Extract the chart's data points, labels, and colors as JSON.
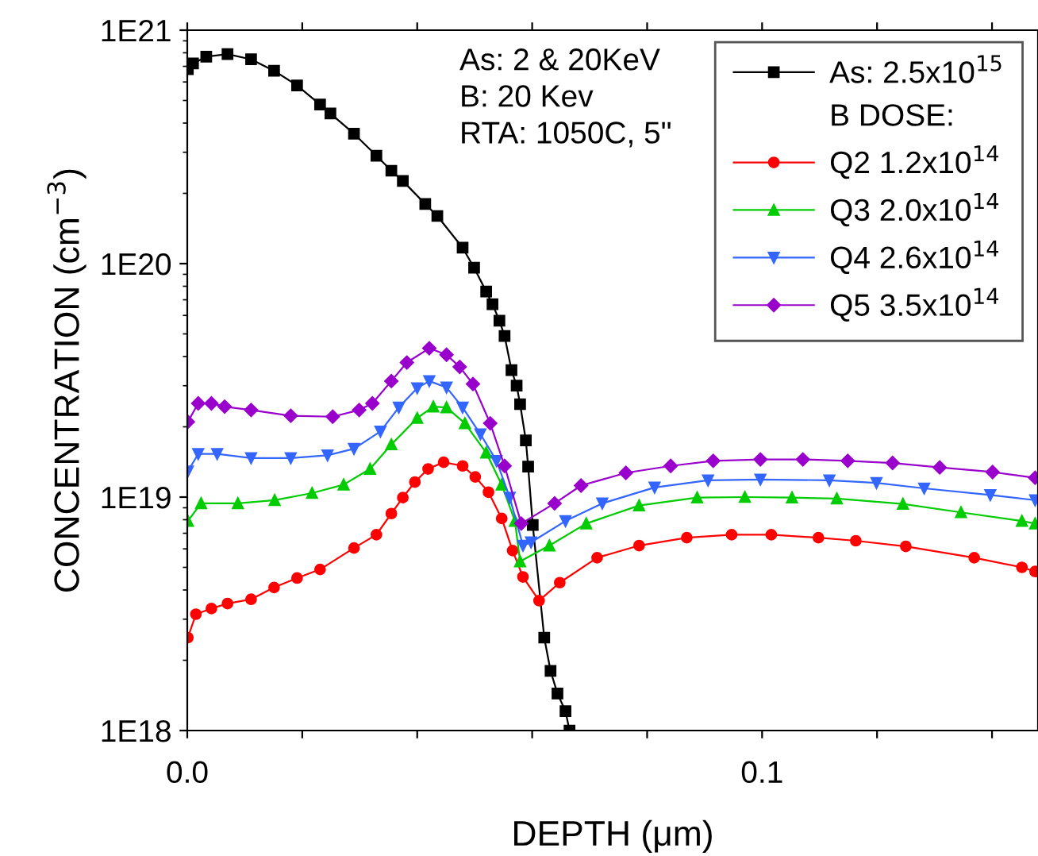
{
  "chart_data": {
    "type": "line",
    "xlabel": "DEPTH (μm)",
    "ylabel": "CONCENTRATION (cm$^{−3}$)",
    "log": "y",
    "xlim": [
      0,
      0.148
    ],
    "ylim": [
      1e+18,
      1e+21
    ],
    "xticks": [
      {
        "value": 0,
        "label": "0.0"
      },
      {
        "value": 0.02,
        "label": null
      },
      {
        "value": 0.04,
        "label": null
      },
      {
        "value": 0.06,
        "label": null
      },
      {
        "value": 0.08,
        "label": null
      },
      0.1,
      {
        "value": 0.12,
        "label": null
      },
      {
        "value": 0.14,
        "label": null
      }
    ],
    "yticks": [
      {
        "value": 1e+18,
        "label": "1E18"
      },
      {
        "value": 1e+19,
        "label": "1E19"
      },
      {
        "value": 1e+20,
        "label": "1E20"
      },
      {
        "value": 1e+21,
        "label": "1E21"
      }
    ],
    "grid": false,
    "legend": "top right",
    "legend_title": "B DOSE:",
    "line_style": "solid",
    "annotations": [
      "As: 2 & 20KeV",
      "B: 20 Kev",
      "RTA: 1050C, 5\""
    ],
    "series": [
      {
        "name": "As: 2.5x10$^{15}$",
        "color": "#000000",
        "marker": "square",
        "x": [
          0.0001,
          0.001,
          0.0033,
          0.007,
          0.0111,
          0.0151,
          0.0191,
          0.0231,
          0.0249,
          0.029,
          0.0329,
          0.0355,
          0.0375,
          0.0414,
          0.0435,
          0.0479,
          0.0499,
          0.052,
          0.0531,
          0.0543,
          0.0552,
          0.0564,
          0.0573,
          0.0579,
          0.0589,
          0.0593,
          0.0601,
          0.0621,
          0.0632,
          0.0644,
          0.0658,
          0.0665
        ],
        "values": [
          6.8e+20,
          7.2e+20,
          7.7e+20,
          7.9e+20,
          7.5e+20,
          6.7e+20,
          5.8e+20,
          4.8e+20,
          4.4e+20,
          3.6e+20,
          2.9e+20,
          2.5e+20,
          2.26e+20,
          1.8e+20,
          1.6e+20,
          1.17e+20,
          9.6e+19,
          7.6e+19,
          6.7e+19,
          5.7e+19,
          4.9e+19,
          3.5e+19,
          3e+19,
          2.5e+19,
          1.75e+19,
          1.35e+19,
          7.6e+18,
          2.5e+18,
          1.8e+18,
          1.44e+18,
          1.21e+18,
          1e+18
        ]
      },
      {
        "name": "Q2 1.2x10$^{14}$",
        "color": "#ff0000",
        "marker": "circle",
        "x": [
          0.0001,
          0.0015,
          0.0042,
          0.007,
          0.0111,
          0.0151,
          0.0191,
          0.0231,
          0.029,
          0.0329,
          0.0355,
          0.0375,
          0.0396,
          0.0419,
          0.0446,
          0.0479,
          0.0501,
          0.0524,
          0.0547,
          0.0566,
          0.0584,
          0.0612,
          0.0648,
          0.0713,
          0.0786,
          0.0869,
          0.0947,
          0.1016,
          0.1098,
          0.1163,
          0.125,
          0.1369,
          0.1452,
          0.1475
        ],
        "values": [
          2.5e+18,
          3.15e+18,
          3.33e+18,
          3.5e+18,
          3.65e+18,
          4.1e+18,
          4.5e+18,
          4.9e+18,
          6.05e+18,
          6.9e+18,
          8.5e+18,
          9.95e+18,
          1.16e+19,
          1.32e+19,
          1.41e+19,
          1.36e+19,
          1.22e+19,
          1.05e+19,
          8.1e+18,
          5.9e+18,
          4.55e+18,
          3.6e+18,
          4.3e+18,
          5.5e+18,
          6.2e+18,
          6.7e+18,
          6.9e+18,
          6.9e+18,
          6.7e+18,
          6.5e+18,
          6.15e+18,
          5.5e+18,
          5e+18,
          4.8e+18
        ]
      },
      {
        "name": "Q3 2.0x10$^{14}$",
        "color": "#00cc00",
        "marker": "triangle",
        "x": [
          0.0001,
          0.0024,
          0.0088,
          0.0152,
          0.0217,
          0.0272,
          0.0318,
          0.0355,
          0.04,
          0.0428,
          0.0451,
          0.0483,
          0.052,
          0.0547,
          0.057,
          0.0579,
          0.063,
          0.0694,
          0.0786,
          0.0887,
          0.097,
          0.1052,
          0.113,
          0.1245,
          0.1346,
          0.1452,
          0.1475
        ],
        "values": [
          7.9e+18,
          9.4e+18,
          9.4e+18,
          9.7e+18,
          1.04e+19,
          1.13e+19,
          1.32e+19,
          1.68e+19,
          2.18e+19,
          2.44e+19,
          2.42e+19,
          2.07e+19,
          1.55e+19,
          1.13e+19,
          7.9e+18,
          5.3e+18,
          6.2e+18,
          7.7e+18,
          9.2e+18,
          9.95e+18,
          1e+19,
          9.95e+18,
          9.85e+18,
          9.35e+18,
          8.6e+18,
          7.9e+18,
          7.7e+18
        ]
      },
      {
        "name": "Q4 2.6x10$^{14}$",
        "color": "#3366ff",
        "marker": "triangle_down",
        "x": [
          0.0001,
          0.0019,
          0.0052,
          0.0111,
          0.018,
          0.0244,
          0.029,
          0.0336,
          0.0368,
          0.04,
          0.0421,
          0.0451,
          0.0479,
          0.051,
          0.0538,
          0.0561,
          0.0584,
          0.0598,
          0.0658,
          0.0722,
          0.0813,
          0.0906,
          0.0997,
          0.1117,
          0.1199,
          0.1282,
          0.1397,
          0.1475
        ],
        "values": [
          1.29e+19,
          1.53e+19,
          1.53e+19,
          1.47e+19,
          1.47e+19,
          1.51e+19,
          1.61e+19,
          1.91e+19,
          2.42e+19,
          2.93e+19,
          3.14e+19,
          2.95e+19,
          2.42e+19,
          1.86e+19,
          1.43e+19,
          9.95e+18,
          6.2e+18,
          6.4e+18,
          7.9e+18,
          9.4e+18,
          1.1e+19,
          1.18e+19,
          1.19e+19,
          1.18e+19,
          1.15e+19,
          1.09e+19,
          1.02e+19,
          9.7e+18
        ]
      },
      {
        "name": "Q5 3.5x10$^{14}$",
        "color": "#9900cc",
        "marker": "diamond",
        "x": [
          0.0001,
          0.0019,
          0.0042,
          0.0065,
          0.0111,
          0.018,
          0.0253,
          0.0299,
          0.0322,
          0.0355,
          0.0382,
          0.0421,
          0.0451,
          0.0474,
          0.0497,
          0.0527,
          0.0552,
          0.0581,
          0.0639,
          0.0685,
          0.0763,
          0.0841,
          0.0915,
          0.0997,
          0.1071,
          0.1149,
          0.1227,
          0.1309,
          0.1401,
          0.1475
        ],
        "values": [
          2.1e+19,
          2.52e+19,
          2.52e+19,
          2.44e+19,
          2.36e+19,
          2.23e+19,
          2.21e+19,
          2.36e+19,
          2.52e+19,
          3.14e+19,
          3.77e+19,
          4.34e+19,
          4.07e+19,
          3.61e+19,
          3.05e+19,
          2.07e+19,
          1.36e+19,
          7.7e+18,
          9.4e+18,
          1.12e+19,
          1.27e+19,
          1.36e+19,
          1.43e+19,
          1.45e+19,
          1.45e+19,
          1.43e+19,
          1.4e+19,
          1.34e+19,
          1.28e+19,
          1.21e+19
        ]
      }
    ]
  }
}
